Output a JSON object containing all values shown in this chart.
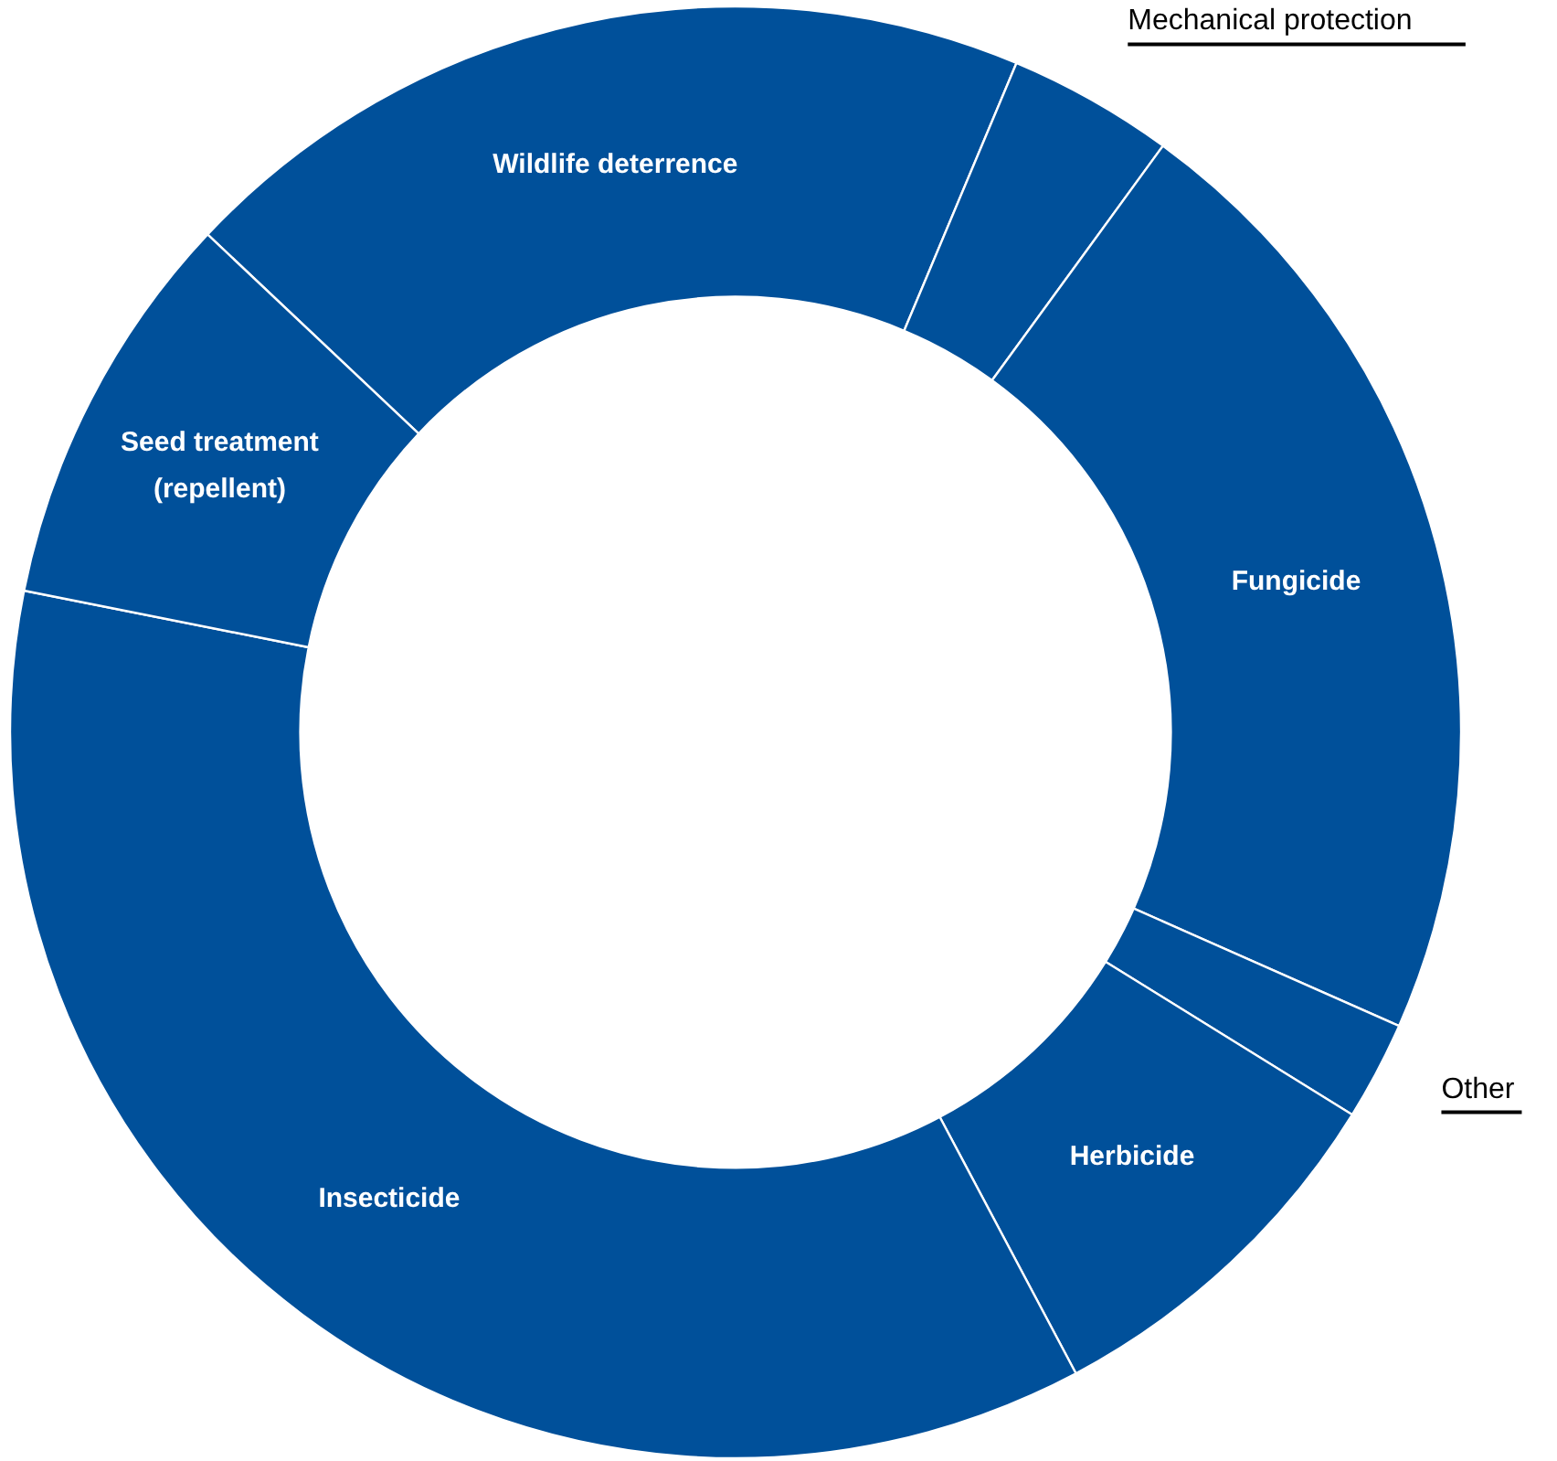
{
  "chart_data": {
    "type": "donut",
    "categories": [
      "Wildlife deterrence",
      "Mechanical protection",
      "Fungicide",
      "Other",
      "Herbicide",
      "Insecticide",
      "Seed treatment (repellent)"
    ],
    "values": [
      19.3,
      3.7,
      21.6,
      2.2,
      8.4,
      35.9,
      8.9
    ],
    "colors": [
      "#00509a",
      "#00509a",
      "#00509a",
      "#00509a",
      "#00509a",
      "#00509a",
      "#00509a"
    ]
  }
}
